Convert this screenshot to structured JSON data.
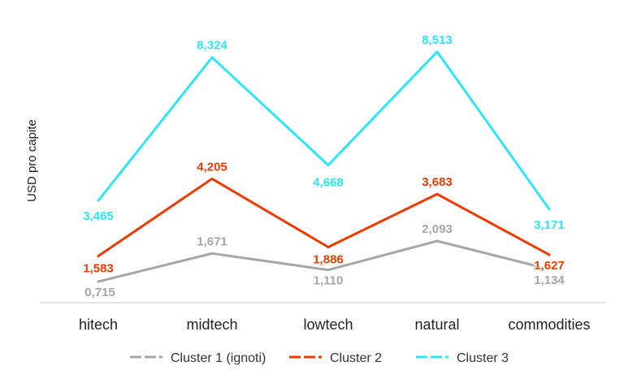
{
  "chart_data": {
    "type": "line",
    "title": "",
    "ylabel": "USD pro capite",
    "xlabel": "",
    "categories": [
      "hitech",
      "midtech",
      "lowtech",
      "natural",
      "commodities"
    ],
    "ylim": [
      0,
      9.5
    ],
    "grid": false,
    "legend_position": "bottom",
    "series": [
      {
        "name": "Cluster 1 (ignoti)",
        "color": "#a6a6a6",
        "values": [
          0.715,
          1.671,
          1.11,
          2.093,
          1.134
        ],
        "labels": [
          "0,715",
          "1,671",
          "1,110",
          "2,093",
          "1,134"
        ],
        "line_style": "solid"
      },
      {
        "name": "Cluster 2",
        "color": "#f03a00",
        "values": [
          1.583,
          4.205,
          1.886,
          3.683,
          1.627
        ],
        "labels": [
          "1,583",
          "4,205",
          "1,886",
          "3,683",
          "1,627"
        ],
        "line_style": "solid"
      },
      {
        "name": "Cluster 3",
        "color": "#2ee6f7",
        "values": [
          3.465,
          8.324,
          4.668,
          8.513,
          3.171
        ],
        "labels": [
          "3,465",
          "8,324",
          "4,668",
          "8,513",
          "3,171"
        ],
        "line_style": "solid"
      }
    ]
  }
}
